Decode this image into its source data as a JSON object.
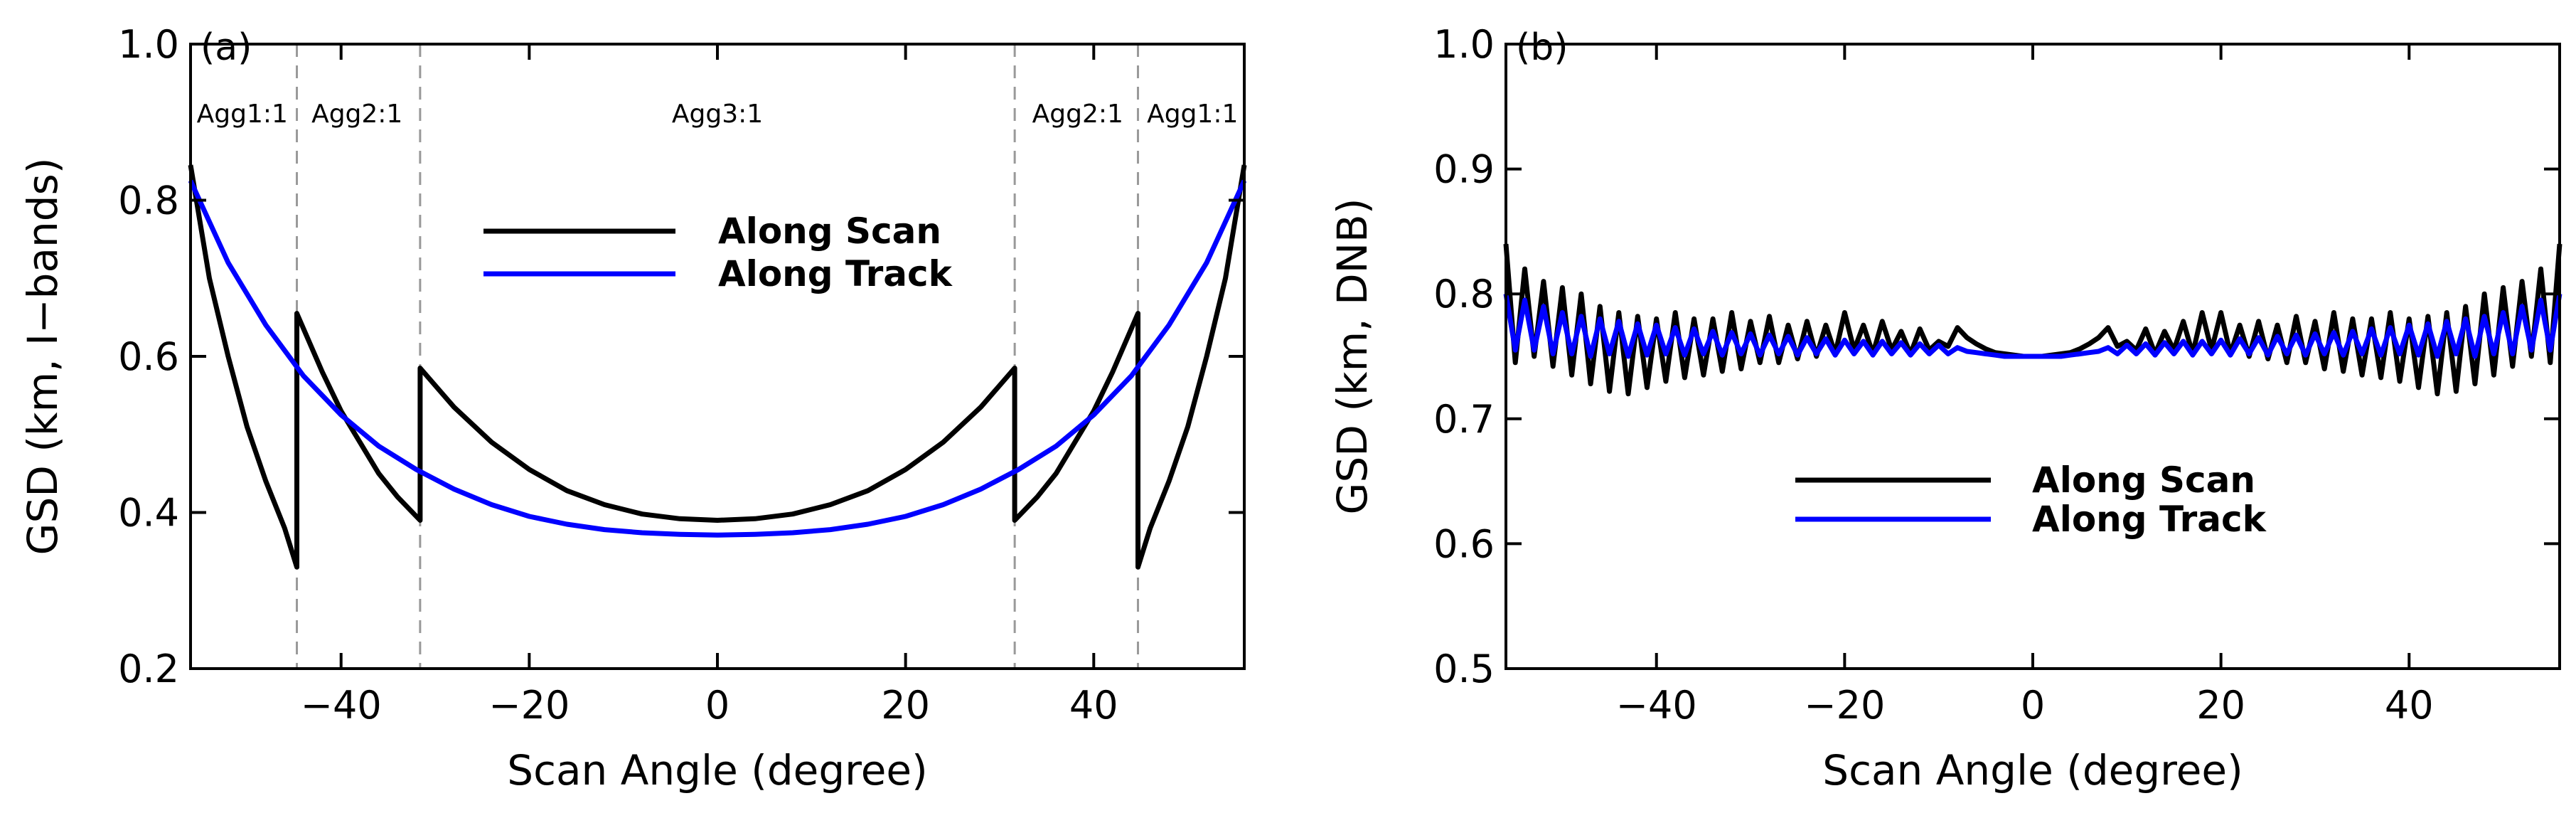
{
  "chart_data": [
    {
      "type": "line",
      "panel_label": "(a)",
      "xlabel": "Scan Angle (degree)",
      "ylabel": "GSD (km, I−bands)",
      "xlim": [
        -56,
        56
      ],
      "ylim": [
        0.2,
        1.0
      ],
      "xticks": [
        -40,
        -20,
        0,
        20,
        40
      ],
      "xtick_labels": [
        "−40",
        "−20",
        "0",
        "20",
        "40"
      ],
      "yticks": [
        0.2,
        0.4,
        0.6,
        0.8,
        1.0
      ],
      "ytick_labels": [
        "0.2",
        "0.4",
        "0.6",
        "0.8",
        "1.0"
      ],
      "legend": {
        "position": "center",
        "entries": [
          "Along Scan",
          "Along Track"
        ]
      },
      "boundaries": [
        -44.7,
        -31.6,
        31.6,
        44.7
      ],
      "region_labels": [
        {
          "text": "Agg1:1",
          "x": -50.5
        },
        {
          "text": "Agg2:1",
          "x": -38.3
        },
        {
          "text": "Agg3:1",
          "x": 0
        },
        {
          "text": "Agg2:1",
          "x": 38.3
        },
        {
          "text": "Agg1:1",
          "x": 50.5
        }
      ],
      "series": [
        {
          "name": "Along Scan",
          "color": "#000000",
          "x": [
            -56,
            -54,
            -52,
            -50,
            -48,
            -46,
            -44.7,
            -44.7,
            -42,
            -40,
            -38,
            -36,
            -34,
            -31.6,
            -31.6,
            -28,
            -24,
            -20,
            -16,
            -12,
            -8,
            -4,
            0,
            4,
            8,
            12,
            16,
            20,
            24,
            28,
            31.6,
            31.6,
            34,
            36,
            38,
            40,
            42,
            44.7,
            44.7,
            46,
            48,
            50,
            52,
            54,
            56
          ],
          "y": [
            0.845,
            0.7,
            0.6,
            0.51,
            0.44,
            0.38,
            0.33,
            0.655,
            0.58,
            0.53,
            0.49,
            0.45,
            0.42,
            0.39,
            0.585,
            0.535,
            0.49,
            0.455,
            0.428,
            0.41,
            0.398,
            0.392,
            0.39,
            0.392,
            0.398,
            0.41,
            0.428,
            0.455,
            0.49,
            0.535,
            0.585,
            0.39,
            0.42,
            0.45,
            0.49,
            0.53,
            0.58,
            0.655,
            0.33,
            0.38,
            0.44,
            0.51,
            0.6,
            0.7,
            0.845
          ]
        },
        {
          "name": "Along Track",
          "color": "#0000ff",
          "x": [
            -56,
            -52,
            -48,
            -44,
            -40,
            -36,
            -32,
            -28,
            -24,
            -20,
            -16,
            -12,
            -8,
            -4,
            0,
            4,
            8,
            12,
            16,
            20,
            24,
            28,
            32,
            36,
            40,
            44,
            48,
            52,
            56
          ],
          "y": [
            0.825,
            0.72,
            0.64,
            0.575,
            0.525,
            0.485,
            0.455,
            0.43,
            0.41,
            0.395,
            0.385,
            0.378,
            0.374,
            0.372,
            0.371,
            0.372,
            0.374,
            0.378,
            0.385,
            0.395,
            0.41,
            0.43,
            0.455,
            0.485,
            0.525,
            0.575,
            0.64,
            0.72,
            0.825
          ]
        }
      ]
    },
    {
      "type": "line",
      "panel_label": "(b)",
      "xlabel": "Scan Angle (degree)",
      "ylabel": "GSD (km, DNB)",
      "xlim": [
        -56,
        56
      ],
      "ylim": [
        0.5,
        1.0
      ],
      "xticks": [
        -40,
        -20,
        0,
        20,
        40
      ],
      "xtick_labels": [
        "−40",
        "−20",
        "0",
        "20",
        "40"
      ],
      "yticks": [
        0.5,
        0.6,
        0.7,
        0.8,
        0.9,
        1.0
      ],
      "ytick_labels": [
        "0.5",
        "0.6",
        "0.7",
        "0.8",
        "0.9",
        "1.0"
      ],
      "legend": {
        "position": "lower-center",
        "entries": [
          "Along Scan",
          "Along Track"
        ]
      },
      "series": [
        {
          "name": "Along Scan",
          "color": "#000000",
          "x": [
            -56,
            -55,
            -54,
            -53,
            -52,
            -51,
            -50,
            -49,
            -48,
            -47,
            -46,
            -45,
            -44,
            -43,
            -42,
            -41,
            -40,
            -39,
            -38,
            -37,
            -36,
            -35,
            -34,
            -33,
            -32,
            -31,
            -30,
            -29,
            -28,
            -27,
            -26,
            -25,
            -24,
            -23,
            -22,
            -21,
            -20,
            -19,
            -18,
            -17,
            -16,
            -15,
            -14,
            -13,
            -12,
            -11,
            -10,
            -9,
            -8,
            -7,
            -6,
            -5,
            -4,
            -3,
            -2,
            -1,
            0,
            1,
            2,
            3,
            4,
            5,
            6,
            7,
            8,
            9,
            10,
            11,
            12,
            13,
            14,
            15,
            16,
            17,
            18,
            19,
            20,
            21,
            22,
            23,
            24,
            25,
            26,
            27,
            28,
            29,
            30,
            31,
            32,
            33,
            34,
            35,
            36,
            37,
            38,
            39,
            40,
            41,
            42,
            43,
            44,
            45,
            46,
            47,
            48,
            49,
            50,
            51,
            52,
            53,
            54,
            55,
            56
          ],
          "y": [
            0.84,
            0.745,
            0.82,
            0.75,
            0.81,
            0.742,
            0.805,
            0.735,
            0.8,
            0.728,
            0.79,
            0.722,
            0.785,
            0.72,
            0.782,
            0.725,
            0.78,
            0.73,
            0.785,
            0.733,
            0.78,
            0.735,
            0.78,
            0.738,
            0.785,
            0.74,
            0.778,
            0.745,
            0.782,
            0.745,
            0.775,
            0.748,
            0.778,
            0.75,
            0.775,
            0.752,
            0.785,
            0.755,
            0.775,
            0.752,
            0.778,
            0.755,
            0.77,
            0.752,
            0.772,
            0.755,
            0.762,
            0.758,
            0.773,
            0.765,
            0.76,
            0.756,
            0.753,
            0.752,
            0.751,
            0.75,
            0.75,
            0.75,
            0.751,
            0.752,
            0.753,
            0.756,
            0.76,
            0.765,
            0.773,
            0.758,
            0.762,
            0.755,
            0.772,
            0.752,
            0.77,
            0.755,
            0.778,
            0.752,
            0.785,
            0.755,
            0.785,
            0.752,
            0.775,
            0.75,
            0.778,
            0.748,
            0.775,
            0.745,
            0.782,
            0.745,
            0.778,
            0.74,
            0.785,
            0.738,
            0.78,
            0.735,
            0.78,
            0.733,
            0.785,
            0.73,
            0.78,
            0.725,
            0.782,
            0.72,
            0.785,
            0.722,
            0.79,
            0.728,
            0.8,
            0.735,
            0.805,
            0.742,
            0.81,
            0.75,
            0.82,
            0.745,
            0.84
          ]
        },
        {
          "name": "Along Track",
          "color": "#0000ff",
          "x": [
            -56,
            -55,
            -54,
            -53,
            -52,
            -51,
            -50,
            -49,
            -48,
            -47,
            -46,
            -45,
            -44,
            -43,
            -42,
            -41,
            -40,
            -39,
            -38,
            -37,
            -36,
            -35,
            -34,
            -33,
            -32,
            -31,
            -30,
            -29,
            -28,
            -27,
            -26,
            -25,
            -24,
            -23,
            -22,
            -21,
            -20,
            -19,
            -18,
            -17,
            -16,
            -15,
            -14,
            -13,
            -12,
            -11,
            -10,
            -9,
            -8,
            -7,
            -6,
            -5,
            -4,
            -3,
            -2,
            -1,
            0,
            1,
            2,
            3,
            4,
            5,
            6,
            7,
            8,
            9,
            10,
            11,
            12,
            13,
            14,
            15,
            16,
            17,
            18,
            19,
            20,
            21,
            22,
            23,
            24,
            25,
            26,
            27,
            28,
            29,
            30,
            31,
            32,
            33,
            34,
            35,
            36,
            37,
            38,
            39,
            40,
            41,
            42,
            43,
            44,
            45,
            46,
            47,
            48,
            49,
            50,
            51,
            52,
            53,
            54,
            55,
            56
          ],
          "y": [
            0.8,
            0.755,
            0.795,
            0.755,
            0.79,
            0.752,
            0.785,
            0.752,
            0.782,
            0.75,
            0.78,
            0.752,
            0.778,
            0.75,
            0.776,
            0.751,
            0.775,
            0.752,
            0.773,
            0.751,
            0.772,
            0.752,
            0.77,
            0.751,
            0.769,
            0.752,
            0.768,
            0.751,
            0.767,
            0.752,
            0.766,
            0.751,
            0.765,
            0.752,
            0.764,
            0.751,
            0.763,
            0.752,
            0.762,
            0.751,
            0.762,
            0.752,
            0.761,
            0.751,
            0.76,
            0.752,
            0.759,
            0.752,
            0.757,
            0.754,
            0.753,
            0.752,
            0.751,
            0.75,
            0.75,
            0.75,
            0.75,
            0.75,
            0.75,
            0.75,
            0.751,
            0.752,
            0.753,
            0.754,
            0.757,
            0.752,
            0.759,
            0.752,
            0.76,
            0.751,
            0.761,
            0.752,
            0.762,
            0.751,
            0.762,
            0.752,
            0.763,
            0.751,
            0.764,
            0.752,
            0.765,
            0.751,
            0.766,
            0.752,
            0.767,
            0.751,
            0.768,
            0.752,
            0.769,
            0.751,
            0.77,
            0.752,
            0.772,
            0.751,
            0.773,
            0.752,
            0.775,
            0.751,
            0.776,
            0.75,
            0.778,
            0.752,
            0.78,
            0.75,
            0.782,
            0.752,
            0.785,
            0.752,
            0.79,
            0.755,
            0.795,
            0.755,
            0.8
          ]
        }
      ]
    }
  ]
}
